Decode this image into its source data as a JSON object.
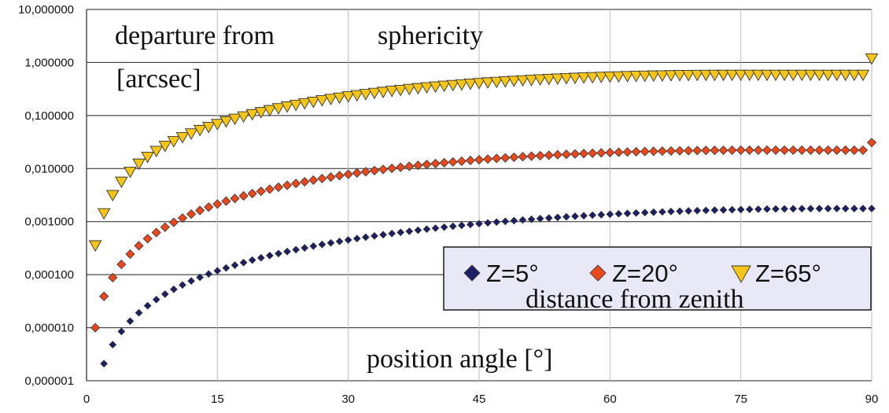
{
  "chart_data": {
    "type": "scatter",
    "title": "departure from sphericity [arcsec]",
    "title_parts": [
      "departure from",
      "sphericity",
      "[arcsec]"
    ],
    "xlabel": "position angle [°]",
    "ylabel": "departure from sphericity [arcsec]",
    "x_ticks": [
      "0",
      "15",
      "30",
      "45",
      "60",
      "75",
      "90"
    ],
    "xlim": [
      0,
      90
    ],
    "y_scale": "log",
    "ylim": [
      1e-06,
      10
    ],
    "y_ticks": [
      {
        "value": 10,
        "label": "10,000000"
      },
      {
        "value": 1,
        "label": "1,000000"
      },
      {
        "value": 0.1,
        "label": "0,100000"
      },
      {
        "value": 0.01,
        "label": "0,010000"
      },
      {
        "value": 0.001,
        "label": "0,001000"
      },
      {
        "value": 0.0001,
        "label": "0,000100"
      },
      {
        "value": 1e-05,
        "label": "0,000010"
      },
      {
        "value": 1e-06,
        "label": "0,000001"
      }
    ],
    "grid": true,
    "legend_title": "distance from zenith",
    "legend_position": "lower-right",
    "x": [
      1,
      2,
      3,
      4,
      5,
      6,
      7,
      8,
      9,
      10,
      11,
      12,
      13,
      14,
      15,
      16,
      17,
      18,
      19,
      20,
      21,
      22,
      23,
      24,
      25,
      26,
      27,
      28,
      29,
      30,
      31,
      32,
      33,
      34,
      35,
      36,
      37,
      38,
      39,
      40,
      41,
      42,
      43,
      44,
      45,
      46,
      47,
      48,
      49,
      50,
      51,
      52,
      53,
      54,
      55,
      56,
      57,
      58,
      59,
      60,
      61,
      62,
      63,
      64,
      65,
      66,
      67,
      68,
      69,
      70,
      71,
      72,
      73,
      74,
      75,
      76,
      77,
      78,
      79,
      80,
      81,
      82,
      83,
      84,
      85,
      86,
      87,
      88,
      89,
      90
    ],
    "series": [
      {
        "name": "Z=5°",
        "marker": "diamond",
        "color": "#1a1f66",
        "x_start": 2,
        "values": [
          2.1e-06,
          4.8e-06,
          8.5e-06,
          1.33e-05,
          1.91e-05,
          2.6e-05,
          3.39e-05,
          4.29e-05,
          5.29e-05,
          6.39e-05,
          7.6e-05,
          8.9e-05,
          0.000103,
          0.000118,
          0.000134,
          0.000151,
          0.000169,
          0.000188,
          0.000208,
          0.000229,
          0.00025,
          0.000273,
          0.000296,
          0.00032,
          0.000345,
          0.000371,
          0.000397,
          0.000424,
          0.000451,
          0.00048,
          0.000508,
          0.000537,
          0.000567,
          0.000597,
          0.000627,
          0.000658,
          0.00069,
          0.000721,
          0.000753,
          0.000785,
          0.000817,
          0.00085,
          0.000882,
          0.000915,
          0.000947,
          0.00098,
          0.001012,
          0.001044,
          0.001076,
          0.001108,
          0.00114,
          0.001171,
          0.001202,
          0.001232,
          0.001262,
          0.001292,
          0.001321,
          0.001349,
          0.001377,
          0.001404,
          0.00143,
          0.001456,
          0.00148,
          0.001504,
          0.001527,
          0.001549,
          0.00157,
          0.001591,
          0.00161,
          0.001628,
          0.001645,
          0.001661,
          0.001676,
          0.00169,
          0.001703,
          0.001714,
          0.001724,
          0.001733,
          0.001741,
          0.001748,
          0.001753,
          0.001757,
          0.00176,
          0.001762,
          0.001763,
          0.001763,
          0.001763,
          0.001763,
          0.001763
        ]
      },
      {
        "name": "Z=20°",
        "marker": "diamond",
        "color": "#e8481c",
        "x_start": 1,
        "values": [
          1e-05,
          3.9e-05,
          8.8e-05,
          0.000156,
          0.000244,
          0.000351,
          0.000477,
          0.000622,
          0.000786,
          0.000968,
          0.001169,
          0.001387,
          0.001623,
          0.001876,
          0.002146,
          0.002432,
          0.002734,
          0.003051,
          0.003382,
          0.003728,
          0.004087,
          0.004458,
          0.004842,
          0.005237,
          0.005642,
          0.006057,
          0.006482,
          0.006914,
          0.007354,
          0.0078,
          0.008252,
          0.008708,
          0.009169,
          0.009632,
          0.010097,
          0.010563,
          0.01103,
          0.011496,
          0.01196,
          0.012422,
          0.012881,
          0.013335,
          0.013785,
          0.014229,
          0.014666,
          0.015097,
          0.015519,
          0.015933,
          0.016338,
          0.016733,
          0.017118,
          0.017491,
          0.017853,
          0.018203,
          0.018541,
          0.018865,
          0.019177,
          0.019474,
          0.019758,
          0.020027,
          0.020282,
          0.020521,
          0.020746,
          0.020955,
          0.021148,
          0.021326,
          0.021488,
          0.021633,
          0.021763,
          0.021876,
          0.021974,
          0.022055,
          0.02212,
          0.02217,
          0.022203,
          0.02222,
          0.022222,
          0.022222,
          0.022222,
          0.022222,
          0.022222,
          0.022222,
          0.022222,
          0.022222,
          0.022222,
          0.022222,
          0.022222,
          0.022222,
          0.022222,
          0.031
        ]
      },
      {
        "name": "Z=65°",
        "marker": "triangle-down",
        "color": "#f5c518",
        "x_start": 1,
        "values": [
          0.00036,
          0.00145,
          0.0032,
          0.0057,
          0.0088,
          0.0125,
          0.0168,
          0.0217,
          0.0271,
          0.0331,
          0.0395,
          0.0464,
          0.0538,
          0.0616,
          0.0699,
          0.0786,
          0.0877,
          0.0971,
          0.107,
          0.117,
          0.1275,
          0.1383,
          0.1493,
          0.1606,
          0.1721,
          0.1838,
          0.1957,
          0.2078,
          0.22,
          0.2323,
          0.2446,
          0.2571,
          0.2695,
          0.282,
          0.2945,
          0.3069,
          0.3193,
          0.3316,
          0.3438,
          0.3559,
          0.3678,
          0.3796,
          0.3912,
          0.4026,
          0.4138,
          0.4248,
          0.4356,
          0.4461,
          0.4563,
          0.4662,
          0.4759,
          0.4852,
          0.4942,
          0.5029,
          0.5112,
          0.5191,
          0.5267,
          0.5339,
          0.5407,
          0.5471,
          0.5531,
          0.5587,
          0.5638,
          0.5686,
          0.5729,
          0.5768,
          0.5803,
          0.5833,
          0.5859,
          0.5881,
          0.5898,
          0.5911,
          0.5919,
          0.5923,
          0.5923,
          0.5923,
          0.5923,
          0.5923,
          0.5923,
          0.5923,
          0.5923,
          0.5923,
          0.5923,
          0.5923,
          0.5923,
          0.5923,
          0.5923,
          0.5923,
          0.5923,
          1.2
        ]
      }
    ]
  }
}
